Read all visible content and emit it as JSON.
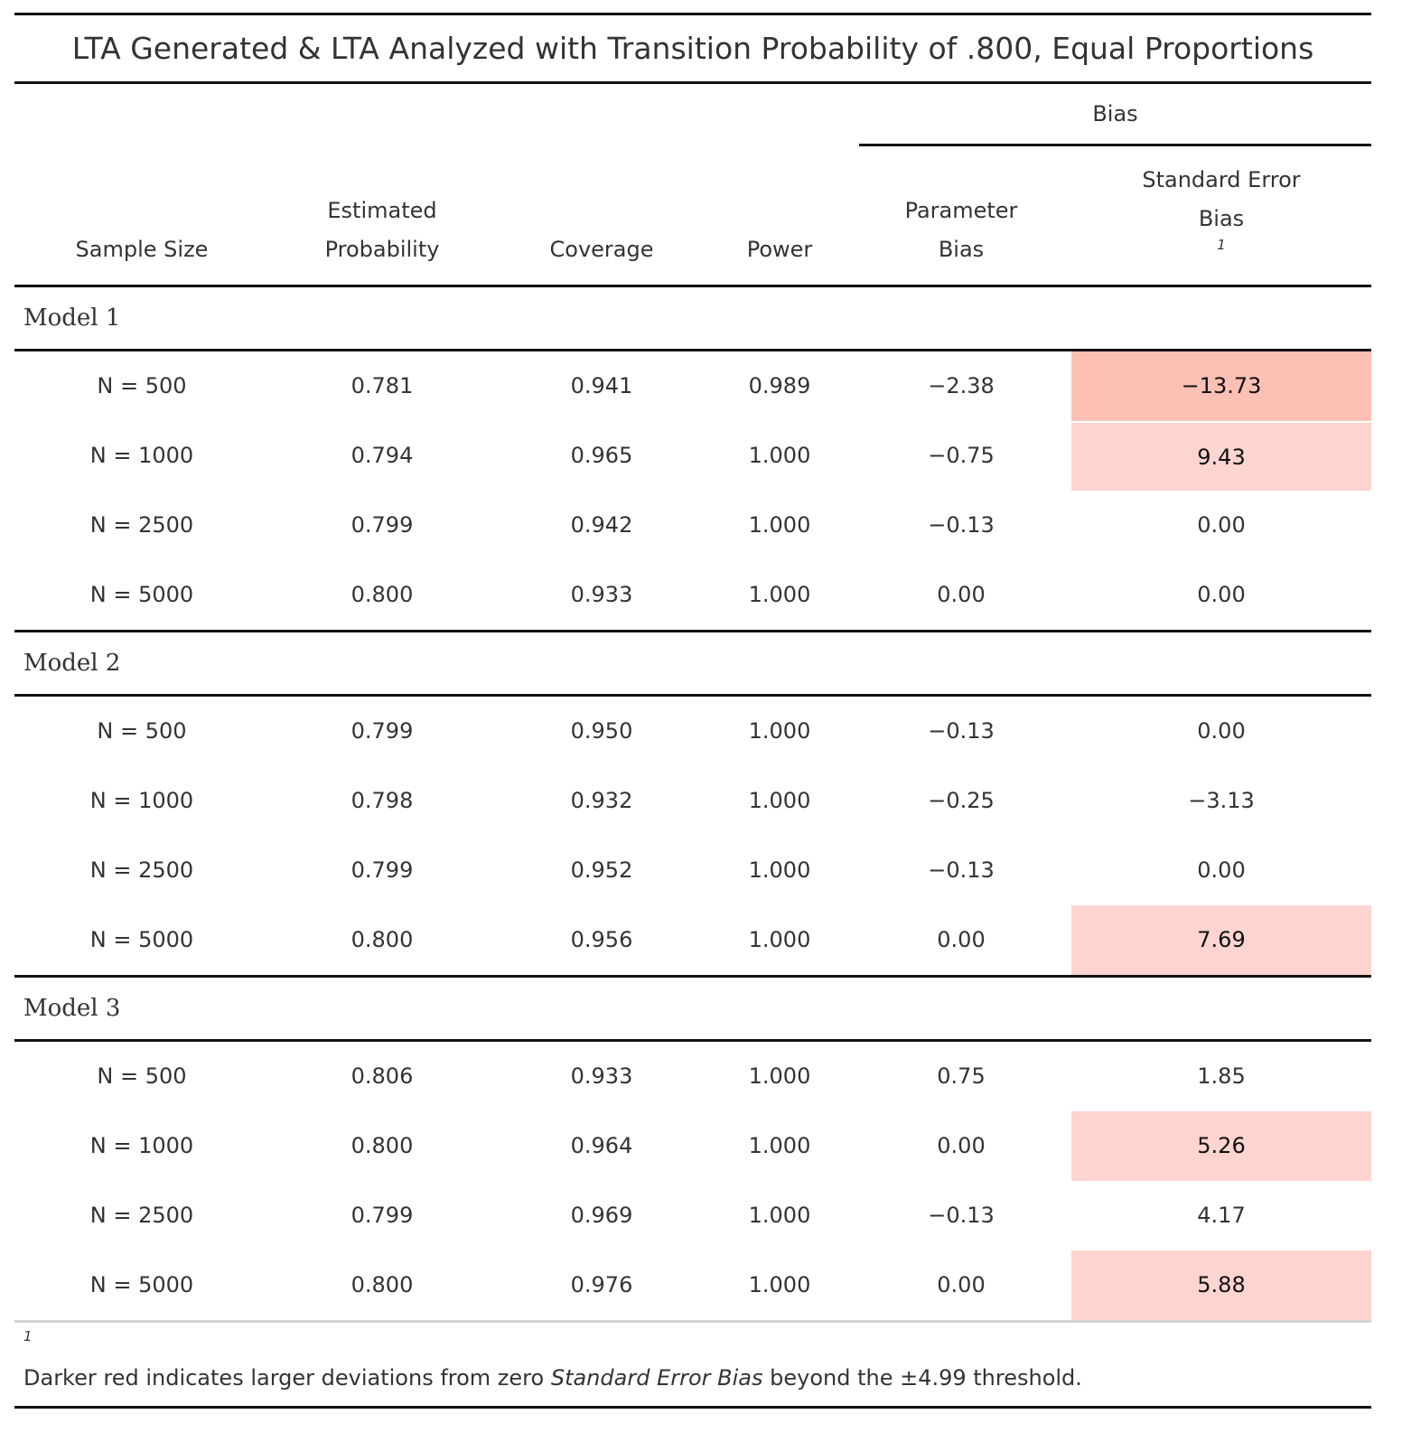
{
  "table": {
    "title": "LTA Generated & LTA Analyzed with Transition Probability of .800, Equal Proportions",
    "spanner_label": "Bias",
    "columns": {
      "sample_size": "Sample Size",
      "estimated_probability_line1": "Estimated",
      "estimated_probability_line2": "Probability",
      "coverage": "Coverage",
      "power": "Power",
      "parameter_bias_line1": "Parameter",
      "parameter_bias_line2": "Bias",
      "se_bias_line1": "Standard Error",
      "se_bias_line2": "Bias",
      "se_bias_footnote_mark": "1"
    },
    "highlight_colors": {
      "strong": "#FDC0B5",
      "light": "#FDD4CF"
    },
    "groups": [
      {
        "label": "Model 1",
        "rows": [
          {
            "n": "N = 500",
            "est": "0.781",
            "cov": "0.941",
            "pow": "0.989",
            "pbias": "−2.38",
            "sebias": "−13.73",
            "hl": "strong"
          },
          {
            "n": "N = 1000",
            "est": "0.794",
            "cov": "0.965",
            "pow": "1.000",
            "pbias": "−0.75",
            "sebias": "9.43",
            "hl": "light"
          },
          {
            "n": "N = 2500",
            "est": "0.799",
            "cov": "0.942",
            "pow": "1.000",
            "pbias": "−0.13",
            "sebias": "0.00",
            "hl": "none"
          },
          {
            "n": "N = 5000",
            "est": "0.800",
            "cov": "0.933",
            "pow": "1.000",
            "pbias": "0.00",
            "sebias": "0.00",
            "hl": "none"
          }
        ]
      },
      {
        "label": "Model 2",
        "rows": [
          {
            "n": "N = 500",
            "est": "0.799",
            "cov": "0.950",
            "pow": "1.000",
            "pbias": "−0.13",
            "sebias": "0.00",
            "hl": "none"
          },
          {
            "n": "N = 1000",
            "est": "0.798",
            "cov": "0.932",
            "pow": "1.000",
            "pbias": "−0.25",
            "sebias": "−3.13",
            "hl": "none"
          },
          {
            "n": "N = 2500",
            "est": "0.799",
            "cov": "0.952",
            "pow": "1.000",
            "pbias": "−0.13",
            "sebias": "0.00",
            "hl": "none"
          },
          {
            "n": "N = 5000",
            "est": "0.800",
            "cov": "0.956",
            "pow": "1.000",
            "pbias": "0.00",
            "sebias": "7.69",
            "hl": "light"
          }
        ]
      },
      {
        "label": "Model 3",
        "rows": [
          {
            "n": "N = 500",
            "est": "0.806",
            "cov": "0.933",
            "pow": "1.000",
            "pbias": "0.75",
            "sebias": "1.85",
            "hl": "none"
          },
          {
            "n": "N = 1000",
            "est": "0.800",
            "cov": "0.964",
            "pow": "1.000",
            "pbias": "0.00",
            "sebias": "5.26",
            "hl": "light"
          },
          {
            "n": "N = 2500",
            "est": "0.799",
            "cov": "0.969",
            "pow": "1.000",
            "pbias": "−0.13",
            "sebias": "4.17",
            "hl": "none"
          },
          {
            "n": "N = 5000",
            "est": "0.800",
            "cov": "0.976",
            "pow": "1.000",
            "pbias": "0.00",
            "sebias": "5.88",
            "hl": "light"
          }
        ]
      }
    ],
    "footnote": {
      "mark": "1",
      "text_before": "Darker red indicates larger deviations from zero ",
      "text_emphasis": "Standard Error Bias",
      "text_after": " beyond the ±4.99 threshold."
    }
  }
}
